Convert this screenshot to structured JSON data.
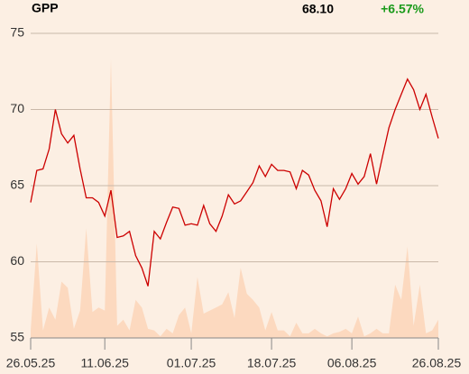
{
  "chart_data": {
    "type": "line",
    "title": "GPP",
    "price": "68.10",
    "change": "+6.57%",
    "change_color": "#1a9a1a",
    "categories": [
      "26.05.25",
      null,
      null,
      null,
      null,
      null,
      null,
      null,
      null,
      null,
      null,
      null,
      "11.06.25",
      null,
      null,
      null,
      null,
      null,
      null,
      null,
      null,
      null,
      null,
      null,
      null,
      null,
      "01.07.25",
      null,
      null,
      null,
      null,
      null,
      null,
      null,
      null,
      null,
      null,
      null,
      null,
      "18.07.25",
      null,
      null,
      null,
      null,
      null,
      null,
      null,
      null,
      null,
      null,
      null,
      null,
      "06.08.25",
      null,
      null,
      null,
      null,
      null,
      null,
      null,
      null,
      null,
      null,
      null,
      null,
      null,
      "26.08.25"
    ],
    "series": [
      {
        "color": "#cc0000",
        "values": [
          63.9,
          66.0,
          66.1,
          67.4,
          70.0,
          68.4,
          67.8,
          68.3,
          66.1,
          64.2,
          64.2,
          63.9,
          63.0,
          64.7,
          61.6,
          61.7,
          62.0,
          60.4,
          59.6,
          58.4,
          62.0,
          61.5,
          62.6,
          63.6,
          63.5,
          62.4,
          62.5,
          62.4,
          63.7,
          62.5,
          62.0,
          63.0,
          64.4,
          63.8,
          64.0,
          64.6,
          65.2,
          66.3,
          65.6,
          66.4,
          66.0,
          66.0,
          65.9,
          64.8,
          66.0,
          65.7,
          64.7,
          64.0,
          62.3,
          64.8,
          64.1,
          64.8,
          65.8,
          65.1,
          65.6,
          67.1,
          65.1,
          67.0,
          68.8,
          70.0,
          71.0,
          72.0,
          71.3,
          70.0,
          71.0,
          69.5,
          68.1
        ]
      },
      {
        "color": "#fcd9bf",
        "fill": true,
        "values": [
          55.5,
          61.2,
          55.5,
          57.0,
          56.2,
          58.7,
          58.3,
          55.6,
          56.8,
          62.2,
          56.7,
          57.0,
          56.8,
          73.3,
          55.8,
          56.2,
          55.5,
          57.5,
          57.0,
          55.6,
          55.5,
          55.1,
          55.6,
          55.3,
          56.5,
          57.0,
          55.3,
          59.0,
          56.6,
          56.8,
          57.0,
          57.2,
          58.0,
          56.3,
          59.6,
          57.9,
          57.5,
          57.0,
          55.5,
          56.7,
          55.5,
          55.5,
          55.1,
          56.0,
          55.3,
          55.3,
          55.6,
          55.3,
          55.1,
          55.3,
          55.4,
          55.6,
          55.3,
          56.4,
          55.1,
          55.3,
          55.6,
          55.3,
          55.3,
          58.5,
          57.5,
          61.0,
          55.8,
          58.5,
          55.3,
          55.5,
          56.2
        ]
      }
    ],
    "ylim": [
      55,
      75
    ],
    "yticks": [
      55,
      60,
      65,
      70,
      75
    ],
    "grid": true
  }
}
